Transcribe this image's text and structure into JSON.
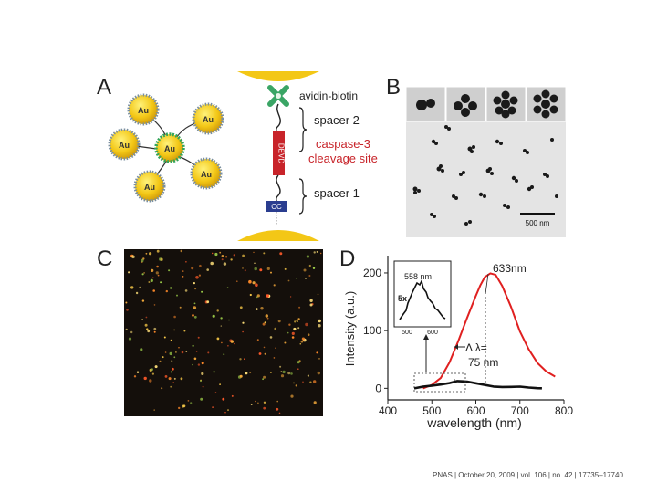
{
  "panels": {
    "a": "A",
    "b": "B",
    "c": "C",
    "d": "D"
  },
  "panel_a": {
    "particle_label": "Au",
    "avidin_biotin": "avidin-biotin",
    "spacer2": "spacer 2",
    "devd": "DEVD",
    "caspase": "caspase-3",
    "cleavage": "cleavage site",
    "spacer1": "spacer 1",
    "cc": "CC"
  },
  "panel_b": {
    "scale_bar": "500 nm"
  },
  "panel_d": {
    "peak_label": "633nm",
    "inset_peak": "558 nm",
    "inset_scale": "5x",
    "inset_ticks": [
      "500",
      "600"
    ],
    "delta_label_1": "Δ λ=",
    "delta_label_2": "75 nm",
    "colors": {
      "red": "#e02020",
      "black": "#111111"
    }
  },
  "chart_data": {
    "type": "line",
    "xlabel": "wavelength (nm)",
    "ylabel": "Intensity (a.u.)",
    "xlim": [
      400,
      800
    ],
    "ylim": [
      -20,
      230
    ],
    "xticks": [
      400,
      500,
      600,
      700,
      800
    ],
    "yticks": [
      0,
      100,
      200
    ],
    "series": [
      {
        "color": "#e02020",
        "x": [
          480,
          500,
          520,
          540,
          560,
          580,
          600,
          610,
          620,
          633,
          645,
          660,
          680,
          700,
          720,
          740,
          760,
          780
        ],
        "y": [
          0,
          8,
          20,
          45,
          80,
          120,
          160,
          180,
          195,
          200,
          195,
          175,
          140,
          100,
          70,
          45,
          28,
          18
        ]
      },
      {
        "color": "#111111",
        "x": [
          460,
          480,
          500,
          520,
          540,
          558,
          580,
          600,
          620,
          640,
          660,
          680,
          700,
          720,
          740,
          750
        ],
        "y": [
          0,
          2,
          4,
          7,
          10,
          13,
          11,
          8,
          6,
          4,
          3,
          2,
          2,
          1,
          1,
          1
        ]
      }
    ]
  },
  "footer": "PNAS | October 20, 2009 | vol. 106 | no. 42 | 17735–17740"
}
